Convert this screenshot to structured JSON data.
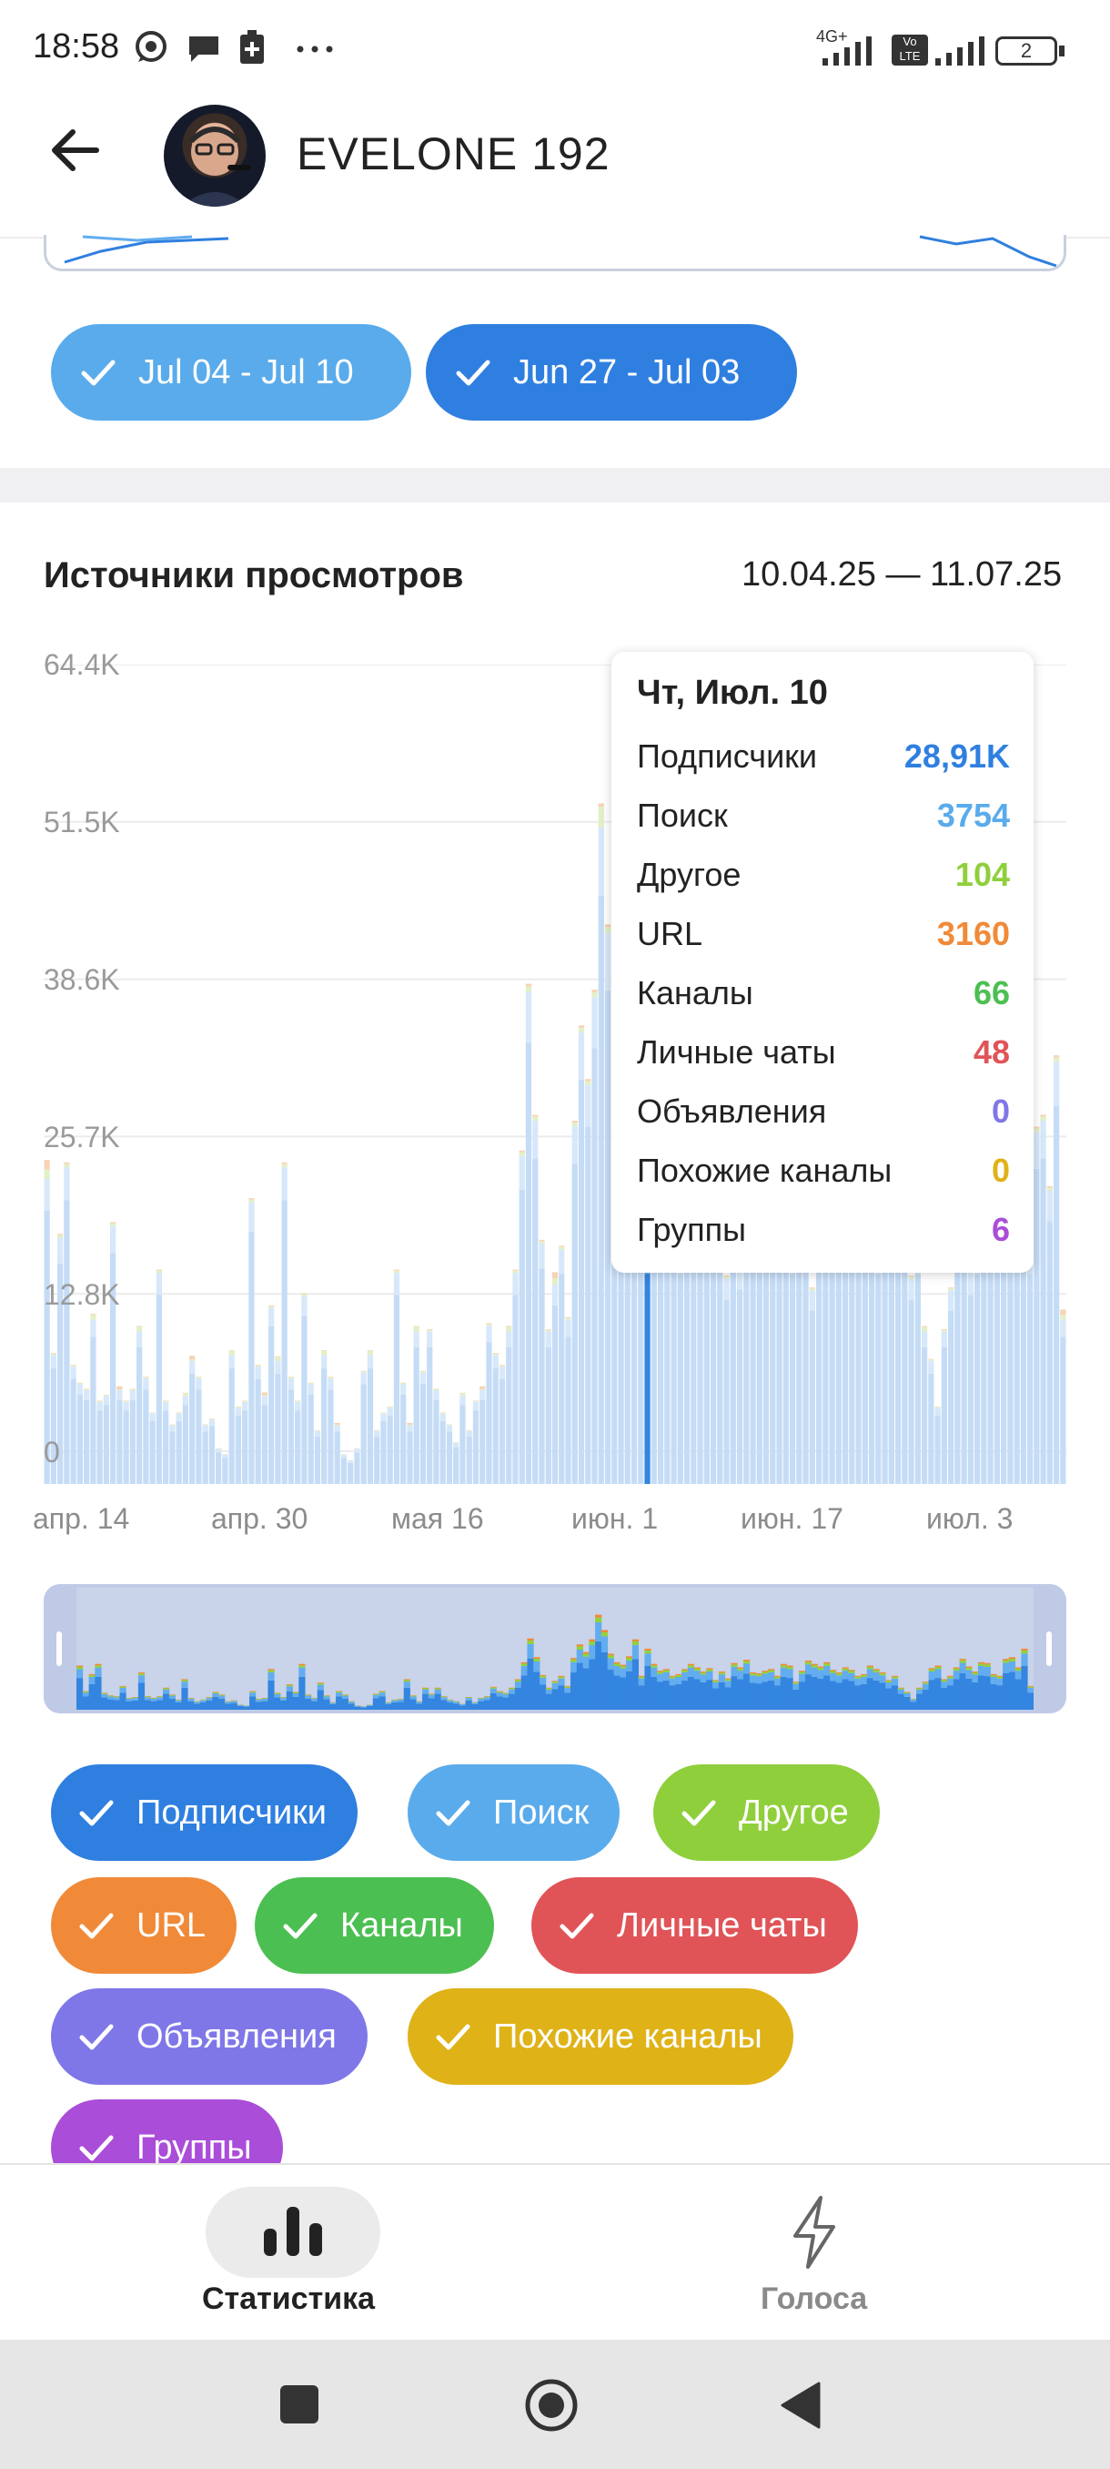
{
  "status_bar": {
    "time": "18:58",
    "network_label": "4G+",
    "volte_label": "Vo LTE",
    "battery_level": "2",
    "icons": [
      "whatsapp-icon",
      "message-icon",
      "battery-saver-icon",
      "more-dots-icon",
      "signal-icon",
      "volte-icon",
      "signal-icon-2",
      "battery-icon"
    ]
  },
  "header": {
    "title": "EVELONE 192",
    "back_icon": "arrow-left-icon"
  },
  "range_chips": [
    {
      "label": "Jul 04 - Jul 10",
      "color": "#5aabeb"
    },
    {
      "label": "Jun 27 - Jul 03",
      "color": "#2f7fe0"
    }
  ],
  "section": {
    "title": "Источники просмотров",
    "range": "10.04.25 — 11.07.25"
  },
  "chart_data": {
    "type": "bar",
    "stacked": true,
    "y_ticks": [
      "64.4K",
      "51.5K",
      "38.6K",
      "25.7K",
      "12.8K",
      "0"
    ],
    "ylim": [
      0,
      64400
    ],
    "x_ticks": [
      "апр. 14",
      "апр. 30",
      "мая 16",
      "июн. 1",
      "июн. 17",
      "июл. 3"
    ],
    "grid": true,
    "highlighted_index": 91,
    "series_colors": {
      "subscribers": "#3385e0",
      "search": "#62acef",
      "other": "#8fd33c",
      "url": "#f18a36",
      "channels": "#47bf51",
      "private_chats": "#e05458",
      "ads": "#8077e8",
      "similar": "#e3b61d",
      "groups": "#aa4dd9"
    },
    "totals": [
      26000,
      11000,
      21000,
      27000,
      10000,
      8500,
      8000,
      14000,
      7000,
      7500,
      22000,
      8000,
      7000,
      8000,
      13000,
      9000,
      6000,
      18000,
      7000,
      5000,
      6000,
      7500,
      10500,
      9000,
      5000,
      5500,
      3000,
      2500,
      11000,
      6500,
      7000,
      24000,
      10000,
      7500,
      15000,
      10500,
      27000,
      9000,
      7000,
      16000,
      8500,
      4500,
      11000,
      9000,
      5000,
      2500,
      2000,
      3000,
      9500,
      11000,
      4500,
      6000,
      6500,
      18000,
      8500,
      5000,
      13000,
      9500,
      13000,
      8000,
      6000,
      5000,
      3500,
      7500,
      4500,
      7000,
      8000,
      13500,
      11000,
      10000,
      13000,
      18000,
      28000,
      42000,
      31000,
      20500,
      13000,
      17000,
      20000,
      14000,
      30500,
      38500,
      34000,
      41500,
      56000,
      47000,
      33000,
      28000,
      26500,
      31500,
      41500,
      20000,
      36000,
      27000,
      23000,
      24000,
      20000,
      21000,
      24000,
      27000,
      25000,
      22500,
      24500,
      17500,
      22500,
      18500,
      27500,
      25000,
      29500,
      22000,
      21500,
      23000,
      24000,
      20000,
      27000,
      26000,
      16500,
      23000,
      29000,
      27000,
      25500,
      28000,
      23500,
      22000,
      25000,
      23500,
      20000,
      21000,
      26000,
      24000,
      22000,
      17500,
      20000,
      13000,
      10500,
      6500,
      13000,
      16500,
      24500,
      26000,
      18000,
      20000,
      25000,
      30000,
      25500,
      22500,
      28000,
      27500,
      21000,
      20000,
      30000,
      31000,
      25000,
      36000,
      14000
    ]
  },
  "tooltip": {
    "date": "Чт, Июл. 10",
    "rows": [
      {
        "name": "Подписчики",
        "value": "28,91K",
        "color": "#2f7fe0"
      },
      {
        "name": "Поиск",
        "value": "3754",
        "color": "#5aabeb"
      },
      {
        "name": "Другое",
        "value": "104",
        "color": "#8fcf3c"
      },
      {
        "name": "URL",
        "value": "3160",
        "color": "#f08a38"
      },
      {
        "name": "Каналы",
        "value": "66",
        "color": "#4cbf52"
      },
      {
        "name": "Личные чаты",
        "value": "48",
        "color": "#e05458"
      },
      {
        "name": "Объявления",
        "value": "0",
        "color": "#7f77e8"
      },
      {
        "name": "Похожие каналы",
        "value": "0",
        "color": "#dfb218"
      },
      {
        "name": "Группы",
        "value": "6",
        "color": "#aa4dd9"
      }
    ]
  },
  "legend": [
    {
      "label": "Подписчики",
      "color": "#2f7fe0"
    },
    {
      "label": "Поиск",
      "color": "#5aabeb"
    },
    {
      "label": "Другое",
      "color": "#8fcf3c"
    },
    {
      "label": "URL",
      "color": "#f08a38"
    },
    {
      "label": "Каналы",
      "color": "#4cbf52"
    },
    {
      "label": "Личные чаты",
      "color": "#e05458"
    },
    {
      "label": "Объявления",
      "color": "#7f77e8"
    },
    {
      "label": "Похожие каналы",
      "color": "#dfb218"
    },
    {
      "label": "Группы",
      "color": "#aa4dd9"
    }
  ],
  "bottom_nav": {
    "items": [
      {
        "label": "Статистика",
        "icon": "bar-chart-icon",
        "active": true
      },
      {
        "label": "Голоса",
        "icon": "lightning-icon",
        "active": false
      }
    ]
  },
  "system_nav": {
    "icons": [
      "recent-apps-icon",
      "home-icon",
      "back-triangle-icon"
    ]
  }
}
